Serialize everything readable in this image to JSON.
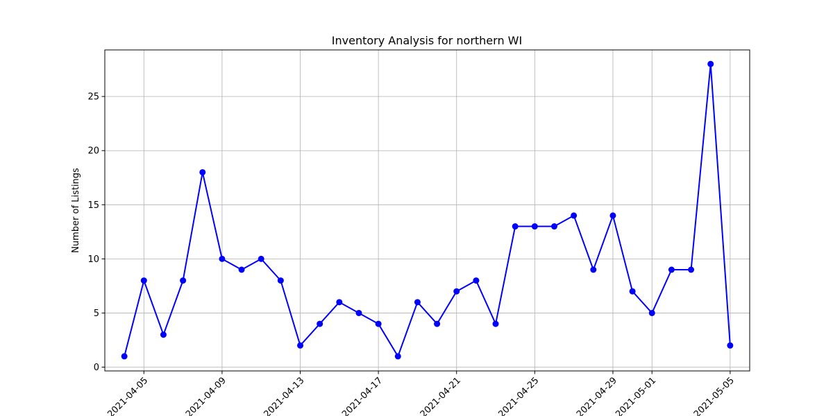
{
  "chart_data": {
    "type": "line",
    "title": "Inventory Analysis for northern WI",
    "xlabel": "",
    "ylabel": "Number of Listings",
    "x_type": "date",
    "x_ticks": [
      "2021-04-05",
      "2021-04-09",
      "2021-04-13",
      "2021-04-17",
      "2021-04-21",
      "2021-04-25",
      "2021-04-29",
      "2021-05-01",
      "2021-05-05"
    ],
    "y_ticks": [
      0,
      5,
      10,
      15,
      20,
      25
    ],
    "xlim": [
      "2021-04-03",
      "2021-05-06"
    ],
    "ylim": [
      -0.35,
      29.3
    ],
    "grid": true,
    "colors": {
      "line": "#0000ff",
      "marker": "#0000ff",
      "grid": "#b0b0b0",
      "axes": "#000000"
    },
    "series": [
      {
        "x": [
          "2021-04-04",
          "2021-04-05",
          "2021-04-06",
          "2021-04-07",
          "2021-04-08",
          "2021-04-09",
          "2021-04-10",
          "2021-04-11",
          "2021-04-12",
          "2021-04-13",
          "2021-04-14",
          "2021-04-15",
          "2021-04-16",
          "2021-04-17",
          "2021-04-18",
          "2021-04-19",
          "2021-04-20",
          "2021-04-21",
          "2021-04-22",
          "2021-04-23",
          "2021-04-24",
          "2021-04-25",
          "2021-04-26",
          "2021-04-27",
          "2021-04-28",
          "2021-04-29",
          "2021-04-30",
          "2021-05-01",
          "2021-05-02",
          "2021-05-03",
          "2021-05-04",
          "2021-05-05"
        ],
        "values": [
          1,
          8,
          3,
          8,
          18,
          10,
          9,
          10,
          8,
          2,
          4,
          6,
          5,
          4,
          1,
          6,
          4,
          7,
          8,
          4,
          13,
          13,
          13,
          14,
          9,
          14,
          7,
          5,
          9,
          9,
          28,
          2
        ]
      }
    ]
  }
}
